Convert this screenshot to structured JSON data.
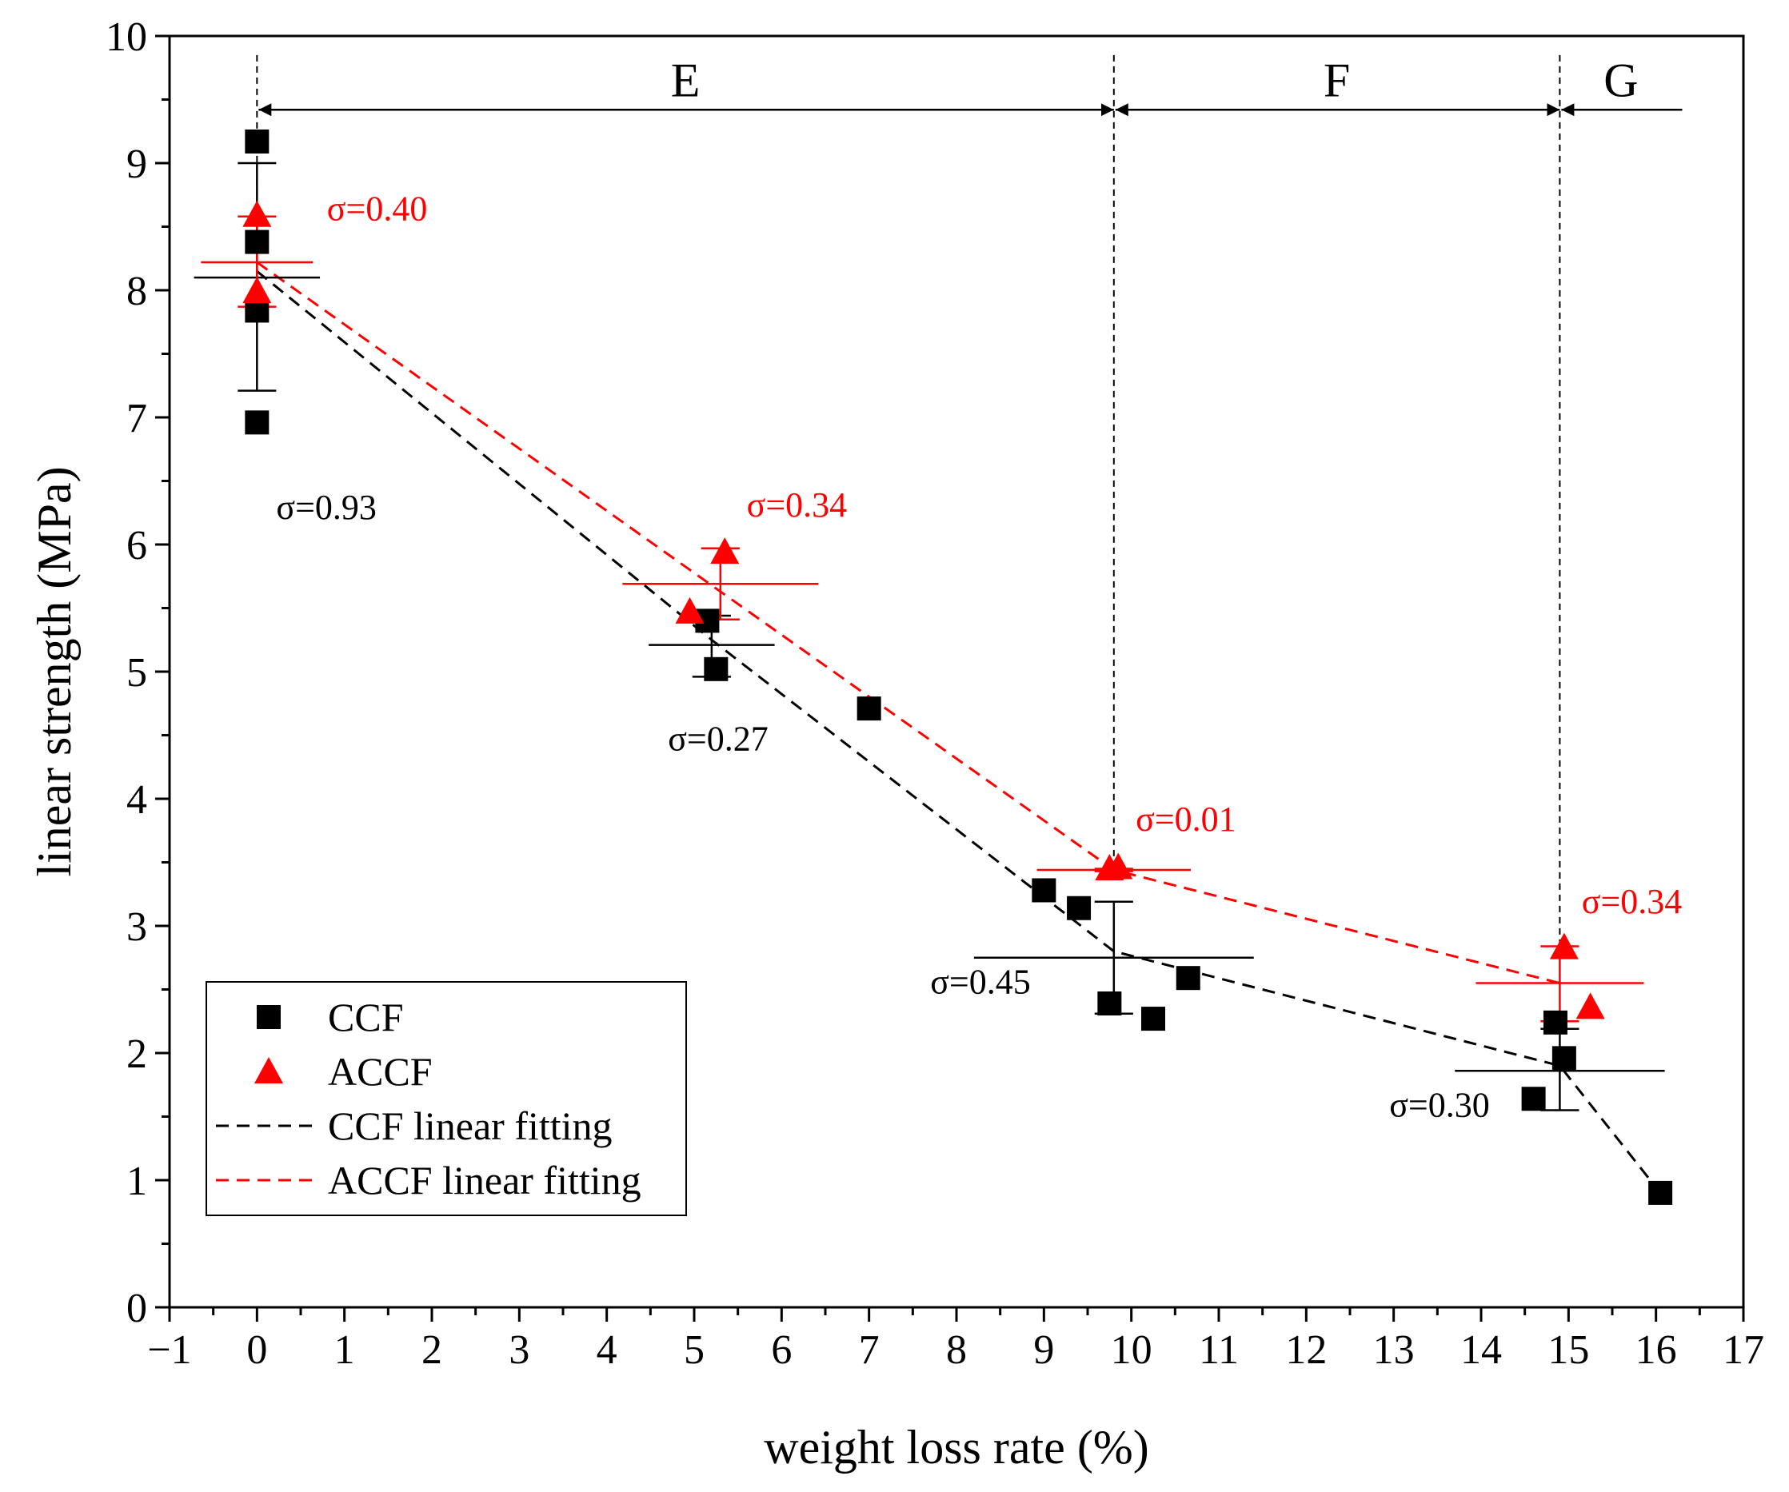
{
  "chart_data": {
    "type": "scatter",
    "xlabel": "weight loss rate (%)",
    "ylabel": "linear strength (MPa)",
    "xlim": [
      -1,
      17
    ],
    "ylim": [
      0,
      10
    ],
    "xticks": [
      "−1",
      "0",
      "1",
      "2",
      "3",
      "4",
      "5",
      "6",
      "7",
      "8",
      "9",
      "10",
      "11",
      "12",
      "13",
      "14",
      "15",
      "16",
      "17"
    ],
    "yticks": [
      "0",
      "1",
      "2",
      "3",
      "4",
      "5",
      "6",
      "7",
      "8",
      "9",
      "10"
    ],
    "colors": {
      "CCF": "#000000",
      "ACCF": "#ff0000"
    },
    "series": [
      {
        "name": "CCF",
        "marker": "square",
        "points": [
          [
            0.0,
            9.17
          ],
          [
            0.0,
            8.38
          ],
          [
            0.0,
            7.84
          ],
          [
            0.0,
            6.96
          ],
          [
            5.15,
            5.4
          ],
          [
            5.25,
            5.02
          ],
          [
            7.0,
            4.71
          ],
          [
            9.0,
            3.28
          ],
          [
            9.4,
            3.14
          ],
          [
            9.75,
            2.39
          ],
          [
            10.25,
            2.27
          ],
          [
            10.65,
            2.59
          ],
          [
            14.6,
            1.64
          ],
          [
            14.85,
            2.24
          ],
          [
            14.95,
            1.96
          ],
          [
            16.05,
            0.9
          ]
        ]
      },
      {
        "name": "ACCF",
        "marker": "triangle",
        "points": [
          [
            0.0,
            8.58
          ],
          [
            0.0,
            7.98
          ],
          [
            4.95,
            5.46
          ],
          [
            5.35,
            5.93
          ],
          [
            9.75,
            3.44
          ],
          [
            9.85,
            3.45
          ],
          [
            14.95,
            2.82
          ],
          [
            15.25,
            2.35
          ]
        ]
      },
      {
        "name": "CCF linear fitting",
        "style": "dashed",
        "color": "#000000",
        "points": [
          [
            0.0,
            8.15
          ],
          [
            5.2,
            5.25
          ],
          [
            9.8,
            2.8
          ],
          [
            14.9,
            1.9
          ],
          [
            16.05,
            0.9
          ]
        ]
      },
      {
        "name": "ACCF linear fitting",
        "style": "dashed",
        "color": "#ff0000",
        "points": [
          [
            0.0,
            8.22
          ],
          [
            5.3,
            5.63
          ],
          [
            9.8,
            3.44
          ],
          [
            14.9,
            2.55
          ]
        ]
      }
    ],
    "error_bars": [
      {
        "series": "CCF",
        "x": 0.0,
        "mean": 8.1,
        "low": 7.21,
        "high": 9.0,
        "half_width": 0.45
      },
      {
        "series": "ACCF",
        "x": 0.0,
        "mean": 8.22,
        "low": 7.87,
        "high": 8.58,
        "half_width": 0.4
      },
      {
        "series": "CCF",
        "x": 5.2,
        "mean": 5.21,
        "low": 4.96,
        "high": 5.44,
        "half_width": 0.45
      },
      {
        "series": "ACCF",
        "x": 5.3,
        "mean": 5.69,
        "low": 5.41,
        "high": 5.97,
        "half_width": 0.7
      },
      {
        "series": "CCF",
        "x": 9.8,
        "mean": 2.75,
        "low": 2.31,
        "high": 3.19,
        "half_width": 1.0
      },
      {
        "series": "ACCF",
        "x": 9.8,
        "mean": 3.44,
        "low": 3.43,
        "high": 3.45,
        "half_width": 0.55
      },
      {
        "series": "CCF",
        "x": 14.9,
        "mean": 1.86,
        "low": 1.55,
        "high": 2.19,
        "half_width": 0.75
      },
      {
        "series": "ACCF",
        "x": 14.9,
        "mean": 2.55,
        "low": 2.25,
        "high": 2.84,
        "half_width": 0.6
      }
    ],
    "annotations": [
      {
        "text": "σ=0.40",
        "x": 0.8,
        "y": 8.55,
        "color": "#ff0000"
      },
      {
        "text": "σ=0.93",
        "x": 0.22,
        "y": 6.2,
        "color": "#000000"
      },
      {
        "text": "σ=0.34",
        "x": 5.6,
        "y": 6.22,
        "color": "#ff0000"
      },
      {
        "text": "σ=0.27",
        "x": 4.7,
        "y": 4.38,
        "color": "#000000"
      },
      {
        "text": "σ=0.01",
        "x": 10.05,
        "y": 3.75,
        "color": "#ff0000"
      },
      {
        "text": "σ=0.45",
        "x": 7.7,
        "y": 2.47,
        "color": "#000000"
      },
      {
        "text": "σ=0.34",
        "x": 15.15,
        "y": 3.1,
        "color": "#ff0000"
      },
      {
        "text": "σ=0.30",
        "x": 12.95,
        "y": 1.5,
        "color": "#000000"
      }
    ],
    "regions": [
      {
        "label": "E",
        "from": 0.0,
        "to": 9.8
      },
      {
        "label": "F",
        "from": 9.8,
        "to": 14.9
      },
      {
        "label": "G",
        "from": 14.9,
        "to": 16.3
      }
    ],
    "region_arrow_y": 9.42,
    "region_label_y": 9.65,
    "boundaries": [
      0.0,
      9.8,
      14.9
    ],
    "legend": {
      "position": "bottom-left",
      "entries": [
        {
          "label": "CCF",
          "kind": "square",
          "color": "#000000"
        },
        {
          "label": "ACCF",
          "kind": "triangle",
          "color": "#ff0000"
        },
        {
          "label": "CCF linear fitting",
          "kind": "dash",
          "color": "#000000"
        },
        {
          "label": "ACCF linear fitting",
          "kind": "dash",
          "color": "#ff0000"
        }
      ]
    }
  }
}
